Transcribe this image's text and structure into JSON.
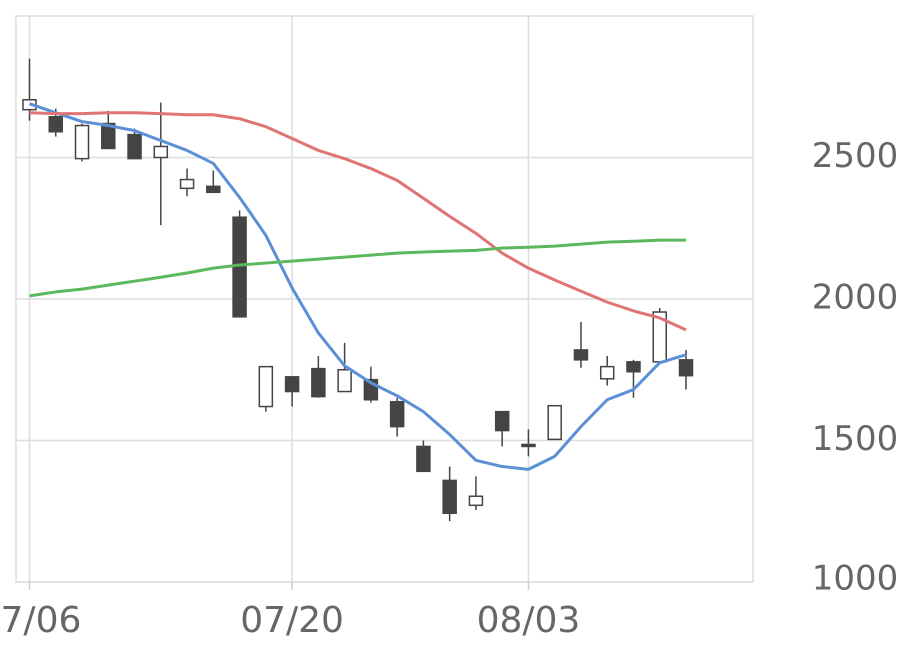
{
  "chart_data": {
    "type": "candlestick",
    "categories": [
      "07/06",
      null,
      null,
      null,
      null,
      null,
      null,
      null,
      null,
      null,
      "07/20",
      null,
      null,
      null,
      null,
      null,
      null,
      null,
      null,
      "08/03",
      null,
      null,
      null,
      null,
      null,
      null
    ],
    "open": [
      2669,
      2644,
      2496,
      2620,
      2581,
      2500,
      2391,
      2398,
      2289,
      1620,
      1725,
      1754,
      1673,
      1715,
      1637,
      1479,
      1359,
      1271,
      1602,
      1486,
      1504,
      1820,
      1718,
      1778,
      1778,
      1785
    ],
    "high": [
      2849,
      2673,
      2620,
      2665,
      2602,
      2694,
      2461,
      2454,
      2313,
      1761,
      1725,
      1799,
      1845,
      1761,
      1651,
      1500,
      1408,
      1373,
      1602,
      1539,
      1623,
      1919,
      1799,
      1785,
      1968,
      1820
    ],
    "low": [
      2630,
      2574,
      2486,
      2532,
      2496,
      2261,
      2363,
      2377,
      1937,
      1602,
      1620,
      1651,
      1673,
      1634,
      1514,
      1391,
      1215,
      1254,
      1479,
      1444,
      1504,
      1757,
      1694,
      1651,
      1778,
      1680
    ],
    "close": [
      2704,
      2591,
      2613,
      2532,
      2496,
      2539,
      2422,
      2377,
      1937,
      1761,
      1673,
      1655,
      1750,
      1644,
      1549,
      1391,
      1243,
      1303,
      1535,
      1479,
      1623,
      1785,
      1761,
      1743,
      1954,
      1729
    ],
    "up_color": "#ffffff",
    "down_color": "#444444",
    "lines": [
      {
        "color": "#5b8fd6",
        "values": [
          2690,
          2658,
          2627,
          2613,
          2595,
          2560,
          2525,
          2479,
          2359,
          2225,
          2039,
          1880,
          1764,
          1704,
          1658,
          1602,
          1521,
          1430,
          1408,
          1398,
          1444,
          1549,
          1644,
          1680,
          1775,
          1803
        ]
      },
      {
        "color": "#e07474",
        "values": [
          2658,
          2655,
          2655,
          2658,
          2658,
          2655,
          2651,
          2651,
          2637,
          2609,
          2567,
          2525,
          2496,
          2461,
          2419,
          2356,
          2292,
          2232,
          2162,
          2109,
          2067,
          2028,
          1989,
          1958,
          1933,
          1891
        ]
      },
      {
        "color": "#5cb85c",
        "values": [
          2011,
          2025,
          2035,
          2049,
          2063,
          2077,
          2092,
          2109,
          2120,
          2127,
          2134,
          2141,
          2148,
          2155,
          2162,
          2166,
          2169,
          2172,
          2180,
          2183,
          2187,
          2194,
          2201,
          2204,
          2208,
          2208
        ]
      }
    ],
    "ylim": [
      1000,
      3000
    ],
    "yticks": [
      1000,
      1500,
      2000,
      2500
    ],
    "grid": true
  }
}
